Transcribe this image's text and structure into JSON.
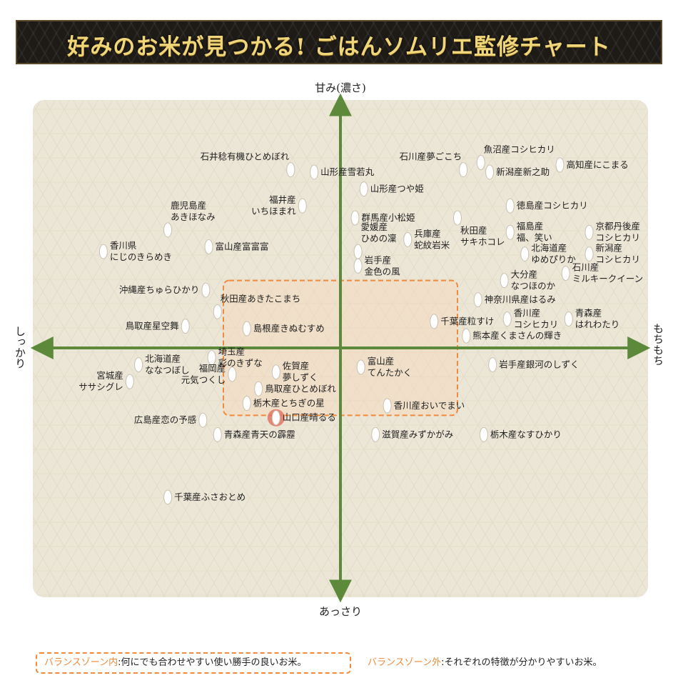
{
  "header": {
    "title": "好みのお米が見つかる! ごはんソムリエ監修チャート"
  },
  "chart_data": {
    "type": "scatter",
    "title": "好みのお米が見つかる! ごはんソムリエ監修チャート",
    "axes": {
      "top": "甘み(濃さ)",
      "bottom": "あっさり",
      "left": "しっかり",
      "right": "もちもち"
    },
    "xlim": [
      -100,
      100
    ],
    "ylim": [
      -100,
      100
    ],
    "x_meaning": "しっかり(−) ⇄ もちもち(+)",
    "y_meaning": "あっさり(−) ⇄ 甘み(濃さ)(+)",
    "balance_zone": {
      "x": [
        -40,
        40
      ],
      "y": [
        -28,
        28
      ]
    },
    "points": [
      {
        "lines": [
          "石井稔有機ひとめぼれ"
        ],
        "x": -17,
        "y": 74,
        "pos": "above-left"
      },
      {
        "lines": [
          "山形産雪若丸"
        ],
        "x": -9,
        "y": 73,
        "pos": "right"
      },
      {
        "lines": [
          "山形産つや姫"
        ],
        "x": 8,
        "y": 66,
        "pos": "right"
      },
      {
        "lines": [
          "石川産夢ごこち"
        ],
        "x": 42,
        "y": 74,
        "pos": "above-left"
      },
      {
        "lines": [
          "魚沼産コシヒカリ"
        ],
        "x": 48,
        "y": 77,
        "pos": "above-right"
      },
      {
        "lines": [
          "新潟産新之助"
        ],
        "x": 51,
        "y": 73,
        "pos": "right"
      },
      {
        "lines": [
          "高知産にこまる"
        ],
        "x": 75,
        "y": 76,
        "pos": "right"
      },
      {
        "lines": [
          "福井産",
          "いちほまれ"
        ],
        "x": -13,
        "y": 59,
        "pos": "left"
      },
      {
        "lines": [
          "徳島産コシヒカリ"
        ],
        "x": 58,
        "y": 59,
        "pos": "right"
      },
      {
        "lines": [
          "群馬産小松姫"
        ],
        "x": 5,
        "y": 54,
        "pos": "right"
      },
      {
        "lines": [
          "秋田産",
          "サキホコレ"
        ],
        "x": 40,
        "y": 54,
        "pos": "below-right"
      },
      {
        "lines": [
          "鹿児島産",
          "あきほなみ"
        ],
        "x": -59,
        "y": 49,
        "pos": "above-right"
      },
      {
        "lines": [
          "兵庫産",
          "蛇紋岩米"
        ],
        "x": 23,
        "y": 45,
        "pos": "right"
      },
      {
        "lines": [
          "福島産",
          "福、笑い"
        ],
        "x": 58,
        "y": 48,
        "pos": "right"
      },
      {
        "lines": [
          "京都丹後産",
          "コシヒカリ"
        ],
        "x": 85,
        "y": 48,
        "pos": "right"
      },
      {
        "lines": [
          "富山産富富富"
        ],
        "x": -45,
        "y": 42,
        "pos": "right"
      },
      {
        "lines": [
          "愛媛産",
          "ひめの凜"
        ],
        "x": 6,
        "y": 40,
        "pos": "above-right"
      },
      {
        "lines": [
          "北海道産",
          "ゆめぴりか"
        ],
        "x": 63,
        "y": 39,
        "pos": "right"
      },
      {
        "lines": [
          "新潟産",
          "コシヒカリ"
        ],
        "x": 85,
        "y": 39,
        "pos": "right"
      },
      {
        "lines": [
          "香川県",
          "にじのきらめき"
        ],
        "x": -81,
        "y": 40,
        "pos": "right"
      },
      {
        "lines": [
          "岩手産",
          "金色の風"
        ],
        "x": 6,
        "y": 34,
        "pos": "right"
      },
      {
        "lines": [
          "石川産",
          "ミルキークイーン"
        ],
        "x": 77,
        "y": 31,
        "pos": "right"
      },
      {
        "lines": [
          "大分産",
          "なつほのか"
        ],
        "x": 56,
        "y": 28,
        "pos": "right"
      },
      {
        "lines": [
          "沖縄産ちゅらひかり"
        ],
        "x": -46,
        "y": 24,
        "pos": "left"
      },
      {
        "lines": [
          "神奈川県産はるみ"
        ],
        "x": 47,
        "y": 20,
        "pos": "right"
      },
      {
        "lines": [
          "秋田産あきたこまち"
        ],
        "x": -42,
        "y": 15,
        "pos": "above-right"
      },
      {
        "lines": [
          "千葉産粒すけ"
        ],
        "x": 32,
        "y": 11,
        "pos": "right"
      },
      {
        "lines": [
          "香川産",
          "コシヒカリ"
        ],
        "x": 57,
        "y": 12,
        "pos": "right"
      },
      {
        "lines": [
          "青森産",
          "はれわたり"
        ],
        "x": 78,
        "y": 12,
        "pos": "right"
      },
      {
        "lines": [
          "鳥取産星空舞"
        ],
        "x": -53,
        "y": 9,
        "pos": "left"
      },
      {
        "lines": [
          "島根産きぬむすめ"
        ],
        "x": -32,
        "y": 8,
        "pos": "right"
      },
      {
        "lines": [
          "熊本産くまさんの輝き"
        ],
        "x": 43,
        "y": 5,
        "pos": "right"
      },
      {
        "lines": [
          "埼玉産",
          "彩のきずな"
        ],
        "x": -44,
        "y": -4,
        "pos": "right"
      },
      {
        "lines": [
          "北海道産",
          "ななつぼし"
        ],
        "x": -69,
        "y": -7,
        "pos": "right"
      },
      {
        "lines": [
          "佐賀産",
          "夢しずく"
        ],
        "x": -22,
        "y": -10,
        "pos": "right"
      },
      {
        "lines": [
          "富山産",
          "てんたかく"
        ],
        "x": 7,
        "y": -8,
        "pos": "right"
      },
      {
        "lines": [
          "岩手産銀河のしずく"
        ],
        "x": 52,
        "y": -7,
        "pos": "right"
      },
      {
        "lines": [
          "福岡産",
          "元気つくし"
        ],
        "x": -37,
        "y": -11,
        "pos": "left"
      },
      {
        "lines": [
          "宮城産",
          "ササシグレ"
        ],
        "x": -72,
        "y": -14,
        "pos": "left"
      },
      {
        "lines": [
          "鳥取産ひとめぼれ"
        ],
        "x": -28,
        "y": -17,
        "pos": "right"
      },
      {
        "lines": [
          "栃木産とちぎの星"
        ],
        "x": -32,
        "y": -23,
        "pos": "right"
      },
      {
        "lines": [
          "香川産おいでまい"
        ],
        "x": 16,
        "y": -24,
        "pos": "right"
      },
      {
        "lines": [
          "広島産恋の予感"
        ],
        "x": -47,
        "y": -30,
        "pos": "left"
      },
      {
        "lines": [
          "山口産晴るる"
        ],
        "x": -22,
        "y": -29,
        "pos": "right",
        "highlight": true
      },
      {
        "lines": [
          "青森産青天の霹靂"
        ],
        "x": -42,
        "y": -36,
        "pos": "right"
      },
      {
        "lines": [
          "滋賀産みずかがみ"
        ],
        "x": 12,
        "y": -36,
        "pos": "right"
      },
      {
        "lines": [
          "栃木産なすひかり"
        ],
        "x": 49,
        "y": -36,
        "pos": "right"
      },
      {
        "lines": [
          "千葉産ふさおとめ"
        ],
        "x": -59,
        "y": -62,
        "pos": "right"
      }
    ]
  },
  "legend": {
    "inside_key": "バランスゾーン内",
    "inside_text": ":何にでも合わせやすい使い勝手の良いお米。",
    "outside_key": "バランスゾーン外",
    "outside_text": ":それぞれの特徴が分かりやすいお米。"
  },
  "colors": {
    "panel_bg": "#ece6d7",
    "axis": "#5c8a3a",
    "zone_border": "#f08a3c",
    "highlight": "#e36f5e",
    "banner_text": "#f0d67a"
  }
}
